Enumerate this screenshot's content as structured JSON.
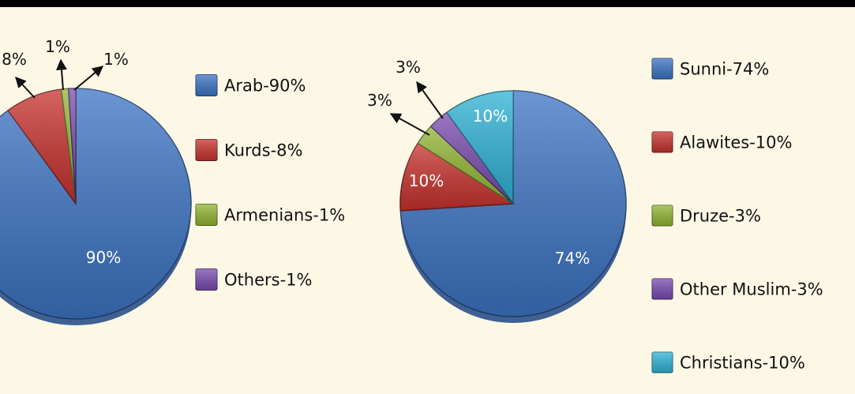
{
  "chart_data": [
    {
      "type": "pie",
      "title": "",
      "slices": [
        {
          "name": "Arab",
          "value": 90,
          "legend": "Arab-90%",
          "label": "90%",
          "color": "#3c74c4"
        },
        {
          "name": "Kurds",
          "value": 8,
          "legend": "Kurds-8%",
          "label": "8%",
          "color": "#c8322e"
        },
        {
          "name": "Armenians",
          "value": 1,
          "legend": "Armenians-1%",
          "label": "1%",
          "color": "#93b534"
        },
        {
          "name": "Others",
          "value": 1,
          "legend": "Others-1%",
          "label": "1%",
          "color": "#7a4bb0"
        }
      ],
      "legend_position": "right"
    },
    {
      "type": "pie",
      "title": "",
      "slices": [
        {
          "name": "Sunni",
          "value": 74,
          "legend": "Sunni-74%",
          "label": "74%",
          "color": "#3c74c4"
        },
        {
          "name": "Alawites",
          "value": 10,
          "legend": "Alawites-10%",
          "label": "10%",
          "color": "#c8322e"
        },
        {
          "name": "Druze",
          "value": 3,
          "legend": "Druze-3%",
          "label": "3%",
          "color": "#93b534"
        },
        {
          "name": "Other Muslim",
          "value": 3,
          "legend": "Other Muslim-3%",
          "label": "3%",
          "color": "#7a4bb0"
        },
        {
          "name": "Christians",
          "value": 10,
          "legend": "Christians-10%",
          "label": "10%",
          "color": "#2fb3d6"
        }
      ],
      "legend_position": "right"
    }
  ],
  "colors": {
    "background": "#fdf8e6",
    "top_bar": "#000000"
  }
}
